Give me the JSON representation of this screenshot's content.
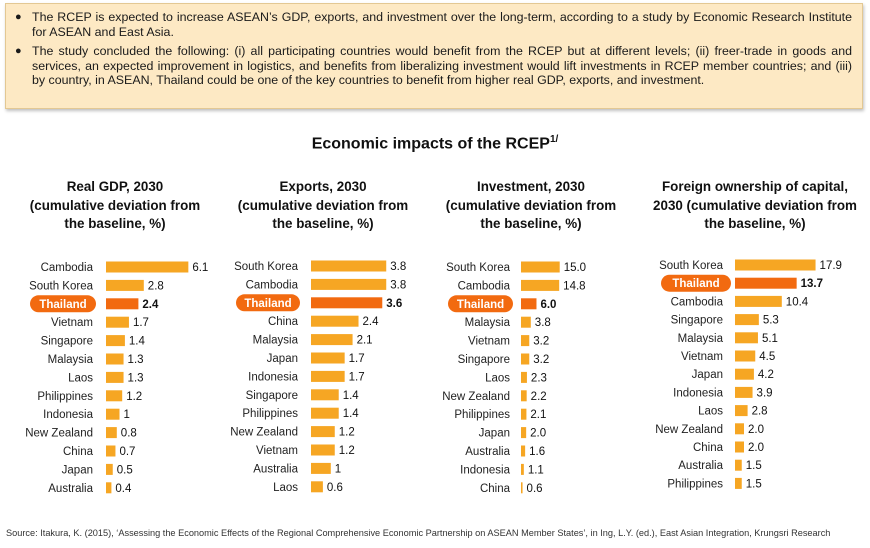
{
  "summary": {
    "bullets": [
      "The RCEP is expected to increase ASEAN’s GDP, exports, and investment over the long-term, according to a study by Economic Research Institute for ASEAN and East Asia.",
      "The study concluded the following: (i) all participating countries would benefit from the RCEP but at different levels; (ii) freer-trade in goods and services, an expected improvement in logistics, and benefits from liberalizing investment would lift investments in RCEP member countries; and (iii) by country, in ASEAN, Thailand could be one of the key countries to benefit from higher real GDP, exports, and investment."
    ]
  },
  "main_title": "Economic impacts of the RCEP",
  "main_title_sup": "1/",
  "source": "Source: Itakura, K. (2015), ‘Assessing the Economic Effects of the Regional Comprehensive Economic Partnership on ASEAN Member States’, in Ing, L.Y. (ed.), East Asian Integration, Krungsri Research",
  "colors": {
    "bar": "#f6a623",
    "highlight": "#f26a10",
    "highlight_label_bg": "#f26a10",
    "highlight_label_text": "#ffffff"
  },
  "chart_data": [
    {
      "type": "bar",
      "orientation": "horizontal",
      "title": "Real GDP, 2030 (cumulative deviation from the baseline, %)",
      "title_lines": [
        "Real GDP, 2030",
        "(cumulative deviation from",
        "the baseline, %)"
      ],
      "categories": [
        "Cambodia",
        "South Korea",
        "Thailand",
        "Vietnam",
        "Singapore",
        "Malaysia",
        "Laos",
        "Philippines",
        "Indonesia",
        "New Zealand",
        "China",
        "Japan",
        "Australia"
      ],
      "values": [
        6.1,
        2.8,
        2.4,
        1.7,
        1.4,
        1.3,
        1.3,
        1.2,
        1,
        0.8,
        0.7,
        0.5,
        0.4
      ],
      "value_labels": [
        "6.1",
        "2.8",
        "2.4",
        "1.7",
        "1.4",
        "1.3",
        "1.3",
        "1.2",
        "1",
        "0.8",
        "0.7",
        "0.5",
        "0.4"
      ],
      "highlight": "Thailand"
    },
    {
      "type": "bar",
      "orientation": "horizontal",
      "title": "Exports, 2030 (cumulative deviation from the baseline, %)",
      "title_lines": [
        "Exports, 2030",
        "(cumulative deviation from",
        "the baseline, %)"
      ],
      "categories": [
        "South Korea",
        "Cambodia",
        "Thailand",
        "China",
        "Malaysia",
        "Japan",
        "Indonesia",
        "Singapore",
        "Philippines",
        "New Zealand",
        "Vietnam",
        "Australia",
        "Laos"
      ],
      "values": [
        3.8,
        3.8,
        3.6,
        2.4,
        2.1,
        1.7,
        1.7,
        1.4,
        1.4,
        1.2,
        1.2,
        1,
        0.6
      ],
      "value_labels": [
        "3.8",
        "3.8",
        "3.6",
        "2.4",
        "2.1",
        "1.7",
        "1.7",
        "1.4",
        "1.4",
        "1.2",
        "1.2",
        "1",
        "0.6"
      ],
      "highlight": "Thailand"
    },
    {
      "type": "bar",
      "orientation": "horizontal",
      "title": "Investment, 2030 (cumulative deviation from the baseline, %)",
      "title_lines": [
        "Investment, 2030",
        "(cumulative deviation from",
        "the baseline, %)"
      ],
      "categories": [
        "South Korea",
        "Cambodia",
        "Thailand",
        "Malaysia",
        "Vietnam",
        "Singapore",
        "Laos",
        "New Zealand",
        "Philippines",
        "Japan",
        "Australia",
        "Indonesia",
        "China"
      ],
      "values": [
        15.0,
        14.8,
        6.0,
        3.8,
        3.2,
        3.2,
        2.3,
        2.2,
        2.1,
        2.0,
        1.6,
        1.1,
        0.6
      ],
      "value_labels": [
        "15.0",
        "14.8",
        "6.0",
        "3.8",
        "3.2",
        "3.2",
        "2.3",
        "2.2",
        "2.1",
        "2.0",
        "1.6",
        "1.1",
        "0.6"
      ],
      "highlight": "Thailand"
    },
    {
      "type": "bar",
      "orientation": "horizontal",
      "title": "Foreign ownership of capital, 2030 (cumulative deviation from the baseline, %)",
      "title_lines": [
        "Foreign ownership of capital,",
        "2030 (cumulative deviation from",
        "the baseline, %)"
      ],
      "categories": [
        "South Korea",
        "Thailand",
        "Cambodia",
        "Singapore",
        "Malaysia",
        "Vietnam",
        "Japan",
        "Indonesia",
        "Laos",
        "New Zealand",
        "China",
        "Australia",
        "Philippines"
      ],
      "values": [
        17.9,
        13.7,
        10.4,
        5.3,
        5.1,
        4.5,
        4.2,
        3.9,
        2.8,
        2.0,
        2.0,
        1.5,
        1.5
      ],
      "value_labels": [
        "17.9",
        "13.7",
        "10.4",
        "5.3",
        "5.1",
        "4.5",
        "4.2",
        "3.9",
        "2.8",
        "2.0",
        "2.0",
        "1.5",
        "1.5"
      ],
      "highlight": "Thailand"
    }
  ]
}
